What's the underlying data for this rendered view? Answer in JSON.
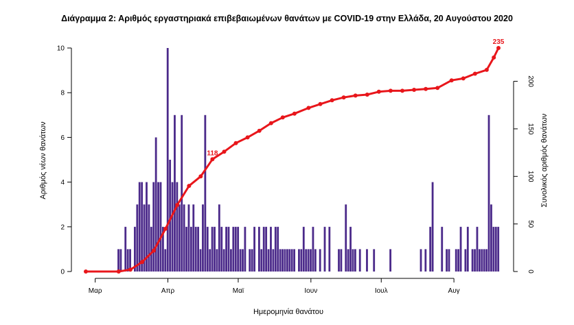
{
  "chart_data": {
    "type": "bar",
    "title": "Διάγραμμα 2: Αριθμός εργαστηριακά επιβεβαιωμένων θανάτων με COVID-19 στην Ελλάδα, 20 Αυγούστου 2020",
    "xlabel": "Ημερομηνία θανάτου",
    "ylabel": "Αριθμός νέων θανάτων",
    "y2label": "Συνολικός αριθμός θανάτων",
    "x_start": "2020-02-26",
    "x_end": "2020-08-20",
    "x_ticks": [
      "Μαρ",
      "Απρ",
      "Μαϊ",
      "Ιουν",
      "Ιουλ",
      "Αυγ"
    ],
    "x_tick_dates": [
      "2020-03-01",
      "2020-04-01",
      "2020-05-01",
      "2020-06-01",
      "2020-07-01",
      "2020-08-01"
    ],
    "ylim": [
      0,
      10
    ],
    "y_ticks": [
      0,
      2,
      4,
      6,
      8,
      10
    ],
    "y2lim": [
      0,
      235
    ],
    "y2_ticks": [
      0,
      50,
      100,
      150,
      200
    ],
    "grid": false,
    "colors": {
      "bars": "#4b2a8a",
      "cumulative": "#e8161b"
    },
    "series": [
      {
        "name": "Αριθμός νέων θανάτων",
        "type": "bar",
        "axis": "left",
        "x": [
          "2020-03-11",
          "2020-03-12",
          "2020-03-14",
          "2020-03-15",
          "2020-03-16",
          "2020-03-18",
          "2020-03-19",
          "2020-03-20",
          "2020-03-21",
          "2020-03-22",
          "2020-03-23",
          "2020-03-24",
          "2020-03-25",
          "2020-03-26",
          "2020-03-27",
          "2020-03-28",
          "2020-03-29",
          "2020-03-30",
          "2020-03-31",
          "2020-04-01",
          "2020-04-02",
          "2020-04-03",
          "2020-04-04",
          "2020-04-05",
          "2020-04-06",
          "2020-04-07",
          "2020-04-08",
          "2020-04-09",
          "2020-04-10",
          "2020-04-11",
          "2020-04-12",
          "2020-04-13",
          "2020-04-14",
          "2020-04-15",
          "2020-04-16",
          "2020-04-17",
          "2020-04-18",
          "2020-04-19",
          "2020-04-20",
          "2020-04-21",
          "2020-04-22",
          "2020-04-23",
          "2020-04-24",
          "2020-04-25",
          "2020-04-26",
          "2020-04-27",
          "2020-04-28",
          "2020-04-29",
          "2020-04-30",
          "2020-05-01",
          "2020-05-02",
          "2020-05-03",
          "2020-05-04",
          "2020-05-06",
          "2020-05-07",
          "2020-05-08",
          "2020-05-10",
          "2020-05-11",
          "2020-05-12",
          "2020-05-13",
          "2020-05-14",
          "2020-05-15",
          "2020-05-16",
          "2020-05-17",
          "2020-05-18",
          "2020-05-19",
          "2020-05-20",
          "2020-05-21",
          "2020-05-22",
          "2020-05-23",
          "2020-05-24",
          "2020-05-25",
          "2020-05-27",
          "2020-05-28",
          "2020-05-29",
          "2020-05-30",
          "2020-05-31",
          "2020-06-01",
          "2020-06-02",
          "2020-06-03",
          "2020-06-05",
          "2020-06-07",
          "2020-06-09",
          "2020-06-13",
          "2020-06-14",
          "2020-06-16",
          "2020-06-17",
          "2020-06-18",
          "2020-06-19",
          "2020-06-20",
          "2020-06-22",
          "2020-06-25",
          "2020-06-28",
          "2020-07-05",
          "2020-07-18",
          "2020-07-20",
          "2020-07-22",
          "2020-07-23",
          "2020-07-27",
          "2020-07-29",
          "2020-07-30",
          "2020-08-02",
          "2020-08-03",
          "2020-08-04",
          "2020-08-06",
          "2020-08-07",
          "2020-08-09",
          "2020-08-10",
          "2020-08-11",
          "2020-08-12",
          "2020-08-13",
          "2020-08-14",
          "2020-08-15",
          "2020-08-16",
          "2020-08-17",
          "2020-08-18",
          "2020-08-19",
          "2020-08-20"
        ],
        "values": [
          1,
          1,
          2,
          1,
          1,
          2,
          3,
          4,
          4,
          3,
          4,
          3,
          2,
          4,
          6,
          4,
          4,
          2,
          1,
          10,
          5,
          4,
          7,
          4,
          3,
          7,
          3,
          2,
          3,
          2,
          3,
          2,
          2,
          1,
          3,
          7,
          2,
          1,
          2,
          2,
          1,
          3,
          2,
          1,
          2,
          2,
          1,
          2,
          2,
          2,
          1,
          1,
          2,
          1,
          1,
          2,
          2,
          1,
          2,
          2,
          1,
          2,
          1,
          2,
          2,
          1,
          1,
          1,
          1,
          1,
          1,
          1,
          1,
          1,
          2,
          1,
          1,
          1,
          2,
          1,
          1,
          2,
          2,
          1,
          1,
          3,
          1,
          2,
          1,
          1,
          1,
          1,
          1,
          1,
          1,
          1,
          2,
          4,
          2,
          1,
          1,
          1,
          1,
          2,
          1,
          2,
          1,
          1,
          2,
          1,
          1,
          1,
          1,
          7,
          3,
          2,
          2,
          2
        ]
      },
      {
        "name": "Συνολικός αριθμός θανάτων",
        "type": "line",
        "axis": "right",
        "x": [
          "2020-02-26",
          "2020-03-11",
          "2020-03-16",
          "2020-03-21",
          "2020-03-26",
          "2020-03-31",
          "2020-04-05",
          "2020-04-10",
          "2020-04-15",
          "2020-04-20",
          "2020-04-25",
          "2020-04-30",
          "2020-05-05",
          "2020-05-10",
          "2020-05-15",
          "2020-05-20",
          "2020-05-25",
          "2020-05-31",
          "2020-06-05",
          "2020-06-10",
          "2020-06-15",
          "2020-06-20",
          "2020-06-25",
          "2020-06-30",
          "2020-07-05",
          "2020-07-10",
          "2020-07-15",
          "2020-07-20",
          "2020-07-25",
          "2020-07-31",
          "2020-08-05",
          "2020-08-10",
          "2020-08-15",
          "2020-08-18",
          "2020-08-20"
        ],
        "values": [
          0,
          0,
          2,
          10,
          22,
          45,
          70,
          90,
          100,
          118,
          126,
          135,
          141,
          148,
          156,
          162,
          166,
          172,
          176,
          180,
          183,
          185,
          186,
          189,
          190,
          190,
          191,
          192,
          193,
          201,
          203,
          208,
          212,
          225,
          235
        ]
      }
    ],
    "annotations": [
      {
        "date": "2020-04-20",
        "value": "118"
      },
      {
        "date": "2020-08-20",
        "value": "235"
      }
    ]
  }
}
